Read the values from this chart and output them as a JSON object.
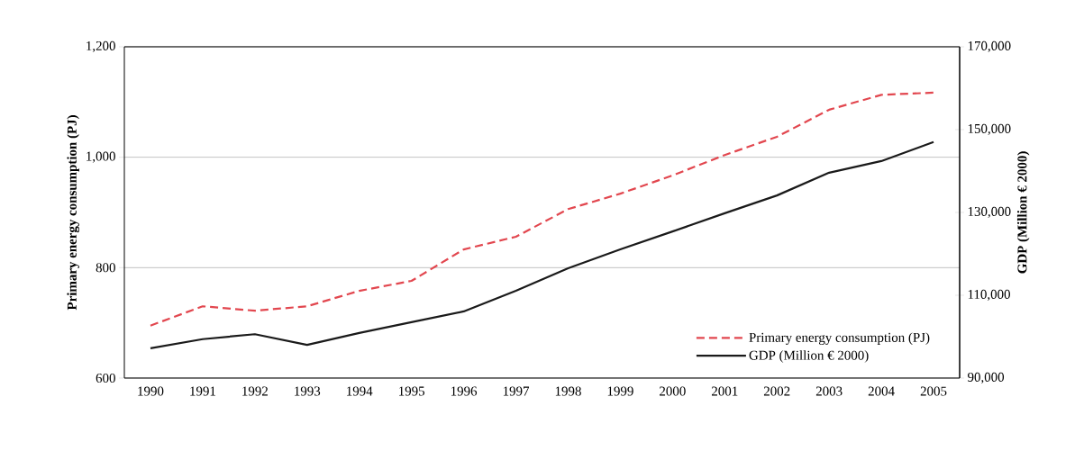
{
  "chart_data": {
    "type": "line",
    "ylabel": "Primary energy consumption (PJ)",
    "y2label": "GDP (Million € 2000)",
    "categories": [
      "1990",
      "1991",
      "1992",
      "1993",
      "1994",
      "1995",
      "1996",
      "1997",
      "1998",
      "1999",
      "2000",
      "2001",
      "2002",
      "2003",
      "2004",
      "2005"
    ],
    "series": [
      {
        "name": "Primary energy consumption (PJ)",
        "color": "#e2474f",
        "line_style": "dashed",
        "values": [
          695,
          730,
          722,
          730,
          758,
          776,
          833,
          856,
          906,
          934,
          967,
          1004,
          1037,
          1086,
          1113,
          1117
        ]
      },
      {
        "name": "GDP (Million € 2000)",
        "color": "#1a1a1a",
        "line_style": "solid",
        "axis": "y2",
        "values": [
          97200,
          99400,
          100600,
          98000,
          100900,
          103500,
          106100,
          111100,
          116500,
          121100,
          125400,
          129800,
          134100,
          139600,
          142400,
          147000
        ]
      }
    ],
    "ylim": [
      600,
      1200
    ],
    "yticks": [
      600,
      800,
      {
        "value": 1000,
        "label": "1,000"
      },
      {
        "value": 1200,
        "label": "1,200"
      }
    ],
    "y2lim": [
      90000,
      170000
    ],
    "y2ticks": [
      {
        "value": 90000,
        "label": "90,000"
      },
      {
        "value": 110000,
        "label": "110,000"
      },
      {
        "value": 130000,
        "label": "130,000"
      },
      {
        "value": 150000,
        "label": "150,000"
      },
      {
        "value": 170000,
        "label": "170,000"
      }
    ],
    "grid": "y",
    "legend": "bottom right"
  }
}
